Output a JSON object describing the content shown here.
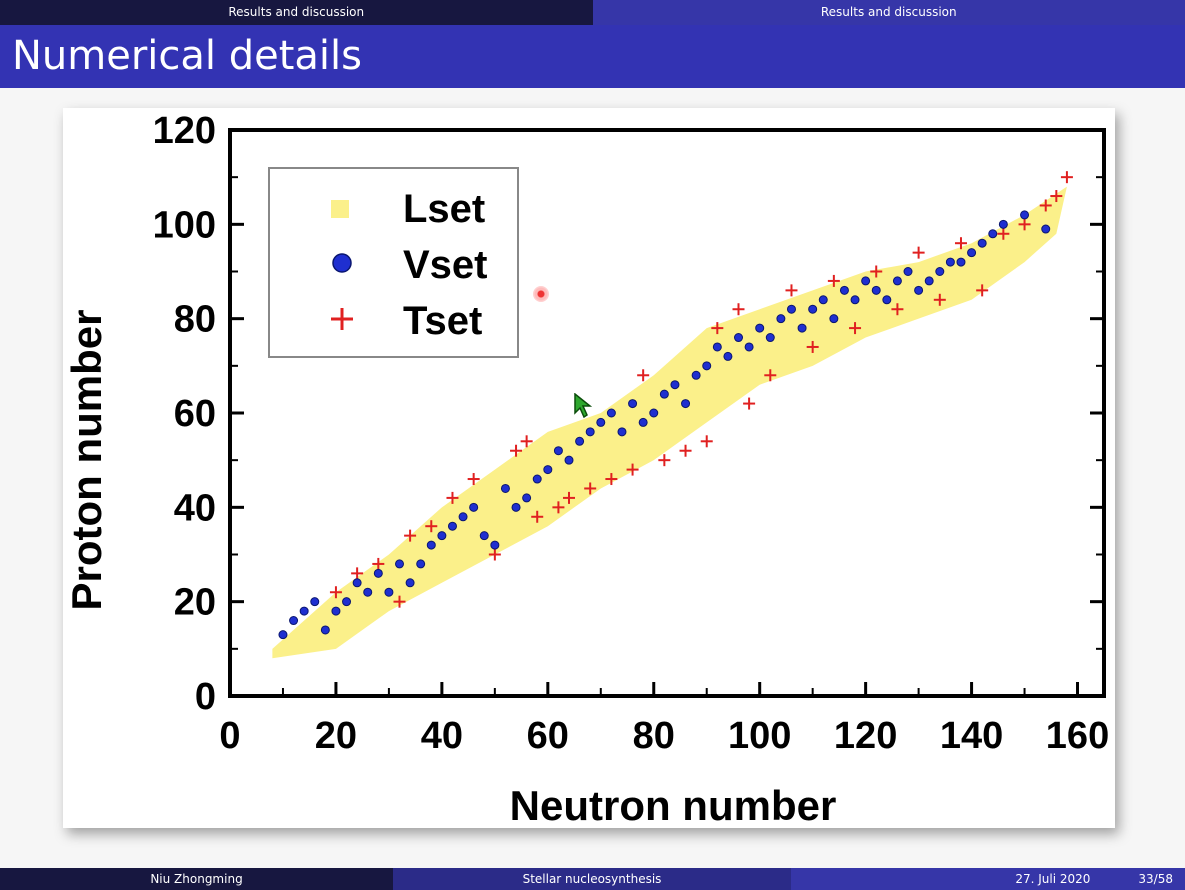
{
  "nav": {
    "left": "Results and discussion",
    "right": "Results and discussion"
  },
  "slide": {
    "title": "Numerical details"
  },
  "footer": {
    "author": "Niu Zhongming",
    "talk": "Stellar nucleosynthesis",
    "date": "27. Juli 2020",
    "page": "33/58"
  },
  "colors": {
    "nav_dark": "#171740",
    "title_blue": "#3333b3",
    "lset": "#fbf08a",
    "vset": "#1f2fd0",
    "tset": "#e02020"
  },
  "chart_data": {
    "type": "scatter",
    "xlabel": "Neutron number",
    "ylabel": "Proton number",
    "xlim": [
      0,
      165
    ],
    "ylim": [
      0,
      120
    ],
    "x_ticks": [
      "0",
      "20",
      "40",
      "60",
      "80",
      "100",
      "120",
      "140",
      "160"
    ],
    "y_ticks": [
      "0",
      "20",
      "40",
      "60",
      "80",
      "100",
      "120"
    ],
    "grid": false,
    "legend_position": "top-left",
    "legend": [
      "Lset",
      "Vset",
      "Tset"
    ],
    "series": [
      {
        "name": "Lset",
        "marker": "square",
        "band_lower": [
          [
            8,
            8
          ],
          [
            20,
            10
          ],
          [
            30,
            18
          ],
          [
            40,
            24
          ],
          [
            50,
            30
          ],
          [
            60,
            36
          ],
          [
            70,
            44
          ],
          [
            80,
            50
          ],
          [
            90,
            58
          ],
          [
            100,
            66
          ],
          [
            110,
            70
          ],
          [
            120,
            76
          ],
          [
            130,
            80
          ],
          [
            140,
            84
          ],
          [
            150,
            92
          ],
          [
            156,
            98
          ]
        ],
        "band_upper": [
          [
            8,
            10
          ],
          [
            20,
            22
          ],
          [
            30,
            30
          ],
          [
            40,
            40
          ],
          [
            50,
            48
          ],
          [
            60,
            56
          ],
          [
            70,
            60
          ],
          [
            80,
            68
          ],
          [
            90,
            78
          ],
          [
            100,
            82
          ],
          [
            110,
            86
          ],
          [
            120,
            90
          ],
          [
            130,
            92
          ],
          [
            140,
            96
          ],
          [
            150,
            102
          ],
          [
            158,
            108
          ]
        ]
      },
      {
        "name": "Vset",
        "marker": "circle",
        "points": [
          [
            10,
            13
          ],
          [
            12,
            16
          ],
          [
            14,
            18
          ],
          [
            16,
            20
          ],
          [
            18,
            14
          ],
          [
            20,
            18
          ],
          [
            22,
            20
          ],
          [
            24,
            24
          ],
          [
            26,
            22
          ],
          [
            28,
            26
          ],
          [
            30,
            22
          ],
          [
            32,
            28
          ],
          [
            34,
            24
          ],
          [
            36,
            28
          ],
          [
            38,
            32
          ],
          [
            40,
            34
          ],
          [
            42,
            36
          ],
          [
            44,
            38
          ],
          [
            46,
            40
          ],
          [
            48,
            34
          ],
          [
            50,
            32
          ],
          [
            52,
            44
          ],
          [
            54,
            40
          ],
          [
            56,
            42
          ],
          [
            58,
            46
          ],
          [
            60,
            48
          ],
          [
            62,
            52
          ],
          [
            64,
            50
          ],
          [
            66,
            54
          ],
          [
            68,
            56
          ],
          [
            70,
            58
          ],
          [
            72,
            60
          ],
          [
            74,
            56
          ],
          [
            76,
            62
          ],
          [
            78,
            58
          ],
          [
            80,
            60
          ],
          [
            82,
            64
          ],
          [
            84,
            66
          ],
          [
            86,
            62
          ],
          [
            88,
            68
          ],
          [
            90,
            70
          ],
          [
            92,
            74
          ],
          [
            94,
            72
          ],
          [
            96,
            76
          ],
          [
            98,
            74
          ],
          [
            100,
            78
          ],
          [
            102,
            76
          ],
          [
            104,
            80
          ],
          [
            106,
            82
          ],
          [
            108,
            78
          ],
          [
            110,
            82
          ],
          [
            112,
            84
          ],
          [
            114,
            80
          ],
          [
            116,
            86
          ],
          [
            118,
            84
          ],
          [
            120,
            88
          ],
          [
            122,
            86
          ],
          [
            124,
            84
          ],
          [
            126,
            88
          ],
          [
            128,
            90
          ],
          [
            130,
            86
          ],
          [
            132,
            88
          ],
          [
            134,
            90
          ],
          [
            136,
            92
          ],
          [
            138,
            92
          ],
          [
            140,
            94
          ],
          [
            142,
            96
          ],
          [
            144,
            98
          ],
          [
            146,
            100
          ],
          [
            150,
            102
          ],
          [
            154,
            99
          ]
        ]
      },
      {
        "name": "Tset",
        "marker": "plus",
        "points": [
          [
            20,
            22
          ],
          [
            24,
            26
          ],
          [
            28,
            28
          ],
          [
            32,
            20
          ],
          [
            34,
            34
          ],
          [
            38,
            36
          ],
          [
            42,
            42
          ],
          [
            46,
            46
          ],
          [
            50,
            30
          ],
          [
            54,
            52
          ],
          [
            56,
            54
          ],
          [
            58,
            38
          ],
          [
            62,
            40
          ],
          [
            64,
            42
          ],
          [
            68,
            44
          ],
          [
            72,
            46
          ],
          [
            76,
            48
          ],
          [
            78,
            68
          ],
          [
            82,
            50
          ],
          [
            86,
            52
          ],
          [
            90,
            54
          ],
          [
            92,
            78
          ],
          [
            96,
            82
          ],
          [
            98,
            62
          ],
          [
            102,
            68
          ],
          [
            106,
            86
          ],
          [
            110,
            74
          ],
          [
            114,
            88
          ],
          [
            118,
            78
          ],
          [
            122,
            90
          ],
          [
            126,
            82
          ],
          [
            130,
            94
          ],
          [
            134,
            84
          ],
          [
            138,
            96
          ],
          [
            142,
            86
          ],
          [
            146,
            98
          ],
          [
            150,
            100
          ],
          [
            154,
            104
          ],
          [
            156,
            106
          ],
          [
            158,
            110
          ]
        ]
      }
    ]
  }
}
